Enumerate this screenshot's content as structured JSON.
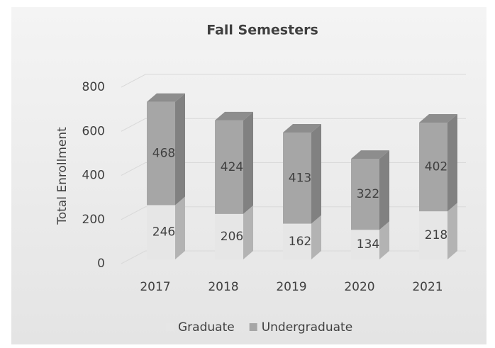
{
  "chart_data": {
    "type": "bar3d_stacked",
    "title": "Fall Semesters",
    "y_label": "Total Enrollment",
    "categories": [
      "2017",
      "2018",
      "2019",
      "2020",
      "2021"
    ],
    "series": [
      {
        "name": "Graduate",
        "color": "#e6e6e6",
        "values": [
          246,
          206,
          162,
          134,
          218
        ]
      },
      {
        "name": "Undergraduate",
        "color": "#a6a6a6",
        "values": [
          468,
          424,
          413,
          322,
          402
        ]
      }
    ],
    "ylim": [
      0,
      800
    ],
    "yticks": [
      0,
      200,
      400,
      600,
      800
    ],
    "grid": true,
    "legend": "bottom",
    "data_labels": true
  }
}
